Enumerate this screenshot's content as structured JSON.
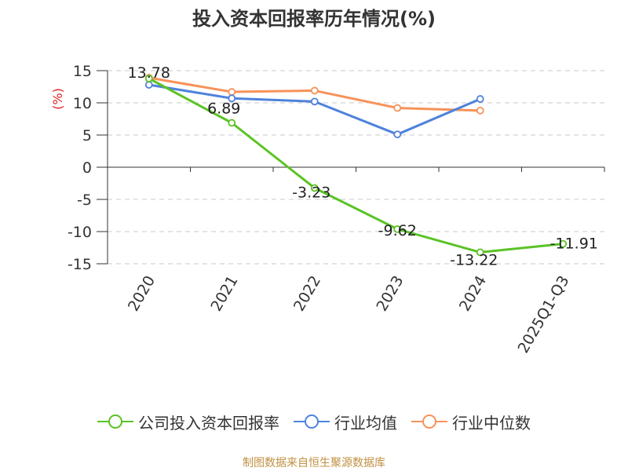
{
  "chart_data": {
    "type": "line",
    "title": "投入资本回报率历年情况(%)",
    "ylabel": "(%)",
    "xlabel": "",
    "categories": [
      "2020",
      "2021",
      "2022",
      "2023",
      "2024",
      "2025Q1-Q3"
    ],
    "ylim": [
      -15,
      15
    ],
    "yticks": [
      15,
      10,
      5,
      0,
      -5,
      -10,
      -15
    ],
    "grid": true,
    "legend_position": "bottom",
    "series": [
      {
        "name": "公司投入资本回报率",
        "color": "#5bc325",
        "values": [
          13.78,
          6.89,
          -3.23,
          -9.62,
          -13.22,
          -11.91
        ],
        "labels": [
          "13.78",
          "6.89",
          "-3.23",
          "-9.62",
          "-13.22",
          "-11.91"
        ]
      },
      {
        "name": "行业均值",
        "color": "#4f82dc",
        "values": [
          12.8,
          10.7,
          10.2,
          5.1,
          10.6,
          null
        ]
      },
      {
        "name": "行业中位数",
        "color": "#f7925a",
        "values": [
          13.9,
          11.7,
          11.9,
          9.2,
          8.8,
          null
        ]
      }
    ]
  },
  "source": "制图数据来自恒生聚源数据库"
}
